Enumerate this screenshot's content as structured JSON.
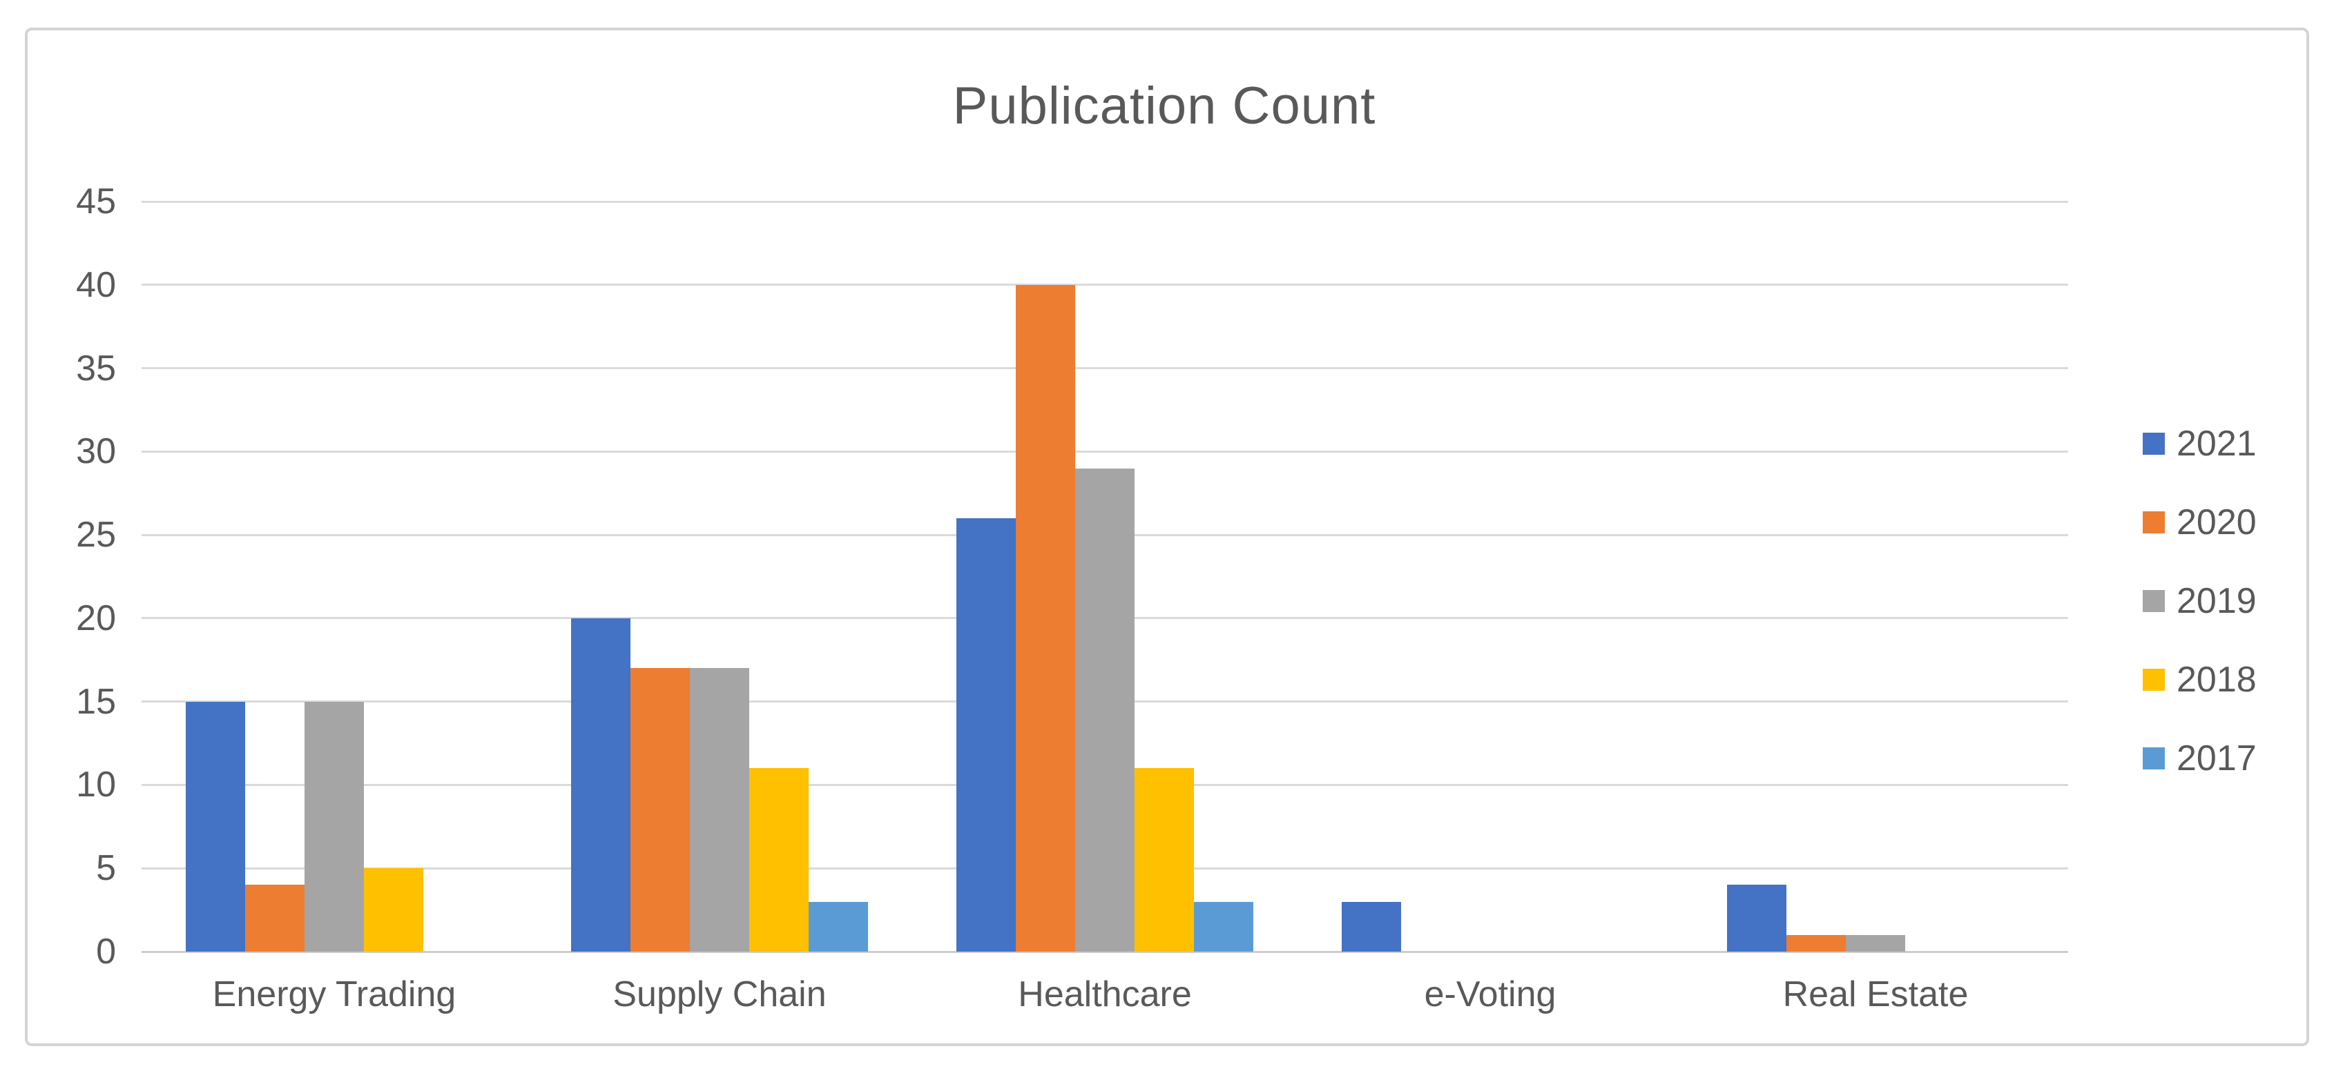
{
  "chart_title": "Publication Count",
  "colors": {
    "text": "#595959",
    "gridline": "#dadada",
    "axis_baseline": "#cdcdcd",
    "frame_border": "#d4d4d4",
    "background": "#ffffff",
    "series_2021": "#4472C4",
    "series_2020": "#ED7D31",
    "series_2019": "#A5A5A5",
    "series_2018": "#FFC000",
    "series_2017": "#5B9BD5"
  },
  "chart_data": {
    "type": "bar",
    "title": "Publication Count",
    "categories": [
      "Energy Trading",
      "Supply Chain",
      "Healthcare",
      "e-Voting",
      "Real Estate"
    ],
    "series": [
      {
        "name": "2021",
        "color": "#4472C4",
        "values": [
          15,
          20,
          26,
          3,
          4
        ]
      },
      {
        "name": "2020",
        "color": "#ED7D31",
        "values": [
          4,
          17,
          40,
          0,
          1
        ]
      },
      {
        "name": "2019",
        "color": "#A5A5A5",
        "values": [
          15,
          17,
          29,
          0,
          1
        ]
      },
      {
        "name": "2018",
        "color": "#FFC000",
        "values": [
          5,
          11,
          11,
          0,
          0
        ]
      },
      {
        "name": "2017",
        "color": "#5B9BD5",
        "values": [
          0,
          3,
          3,
          0,
          0
        ]
      }
    ],
    "xlabel": "",
    "ylabel": "",
    "ylim": [
      0,
      45
    ],
    "ytick_step": 5,
    "ytick_labels": [
      "0",
      "5",
      "10",
      "15",
      "20",
      "25",
      "30",
      "35",
      "40",
      "45"
    ],
    "grid": true,
    "legend_position": "right",
    "legend_entries": [
      "2021",
      "2020",
      "2019",
      "2018",
      "2017"
    ]
  }
}
